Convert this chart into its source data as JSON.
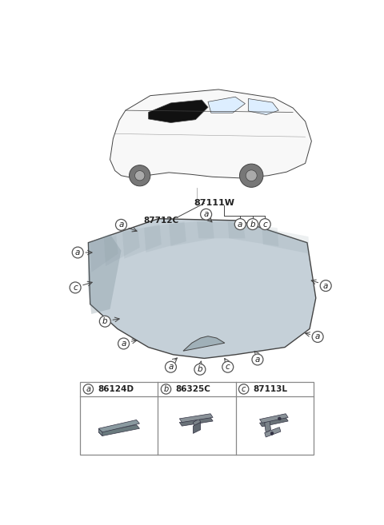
{
  "bg_color": "#ffffff",
  "part_labels": {
    "a": "86124D",
    "b": "86325C",
    "c": "87113L"
  },
  "main_part_code": "87111W",
  "sub_part_code": "87712C",
  "label_circle_color": "#ffffff",
  "label_circle_edge": "#555555",
  "glass_color_light": "#c5d0d8",
  "glass_color_dark": "#9aaab4",
  "glass_shadow": "#7a8e98",
  "line_color": "#444444",
  "text_color": "#222222",
  "box_edge_color": "#888888"
}
